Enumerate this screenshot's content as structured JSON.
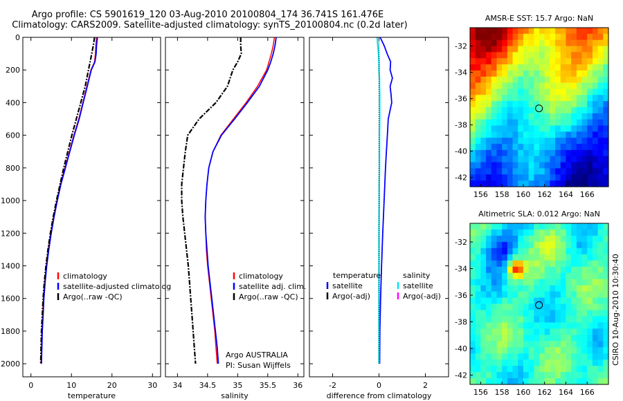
{
  "titles": {
    "line1": "Argo profile: CS 5901619_120 03-Aug-2010 20100804_174 36.741S 161.476E",
    "line2": "Climatology: CARS2009. Satellite-adjusted climatology: synTS_20100804.nc (0.2d later)"
  },
  "colors": {
    "climatology": "#ff0000",
    "satellite": "#0000ff",
    "argo": "#000000",
    "sat_salinity": "#00e5ee",
    "argo_adj_salinity": "#ff00ff"
  },
  "chart_data": [
    {
      "type": "line",
      "panel": "temperature",
      "xlabel": "temperature",
      "ylabel": "",
      "xlim": [
        -2,
        32
      ],
      "ylim": [
        2080,
        0
      ],
      "y_reversed": true,
      "xticks": [
        "0",
        "10",
        "20",
        "30"
      ],
      "yticks": [
        "0",
        "200",
        "400",
        "600",
        "800",
        "1000",
        "1200",
        "1400",
        "1600",
        "1800",
        "2000"
      ],
      "legend": [
        "climatology",
        "satellite-adjusted climatolog",
        "Argo(..raw -QC)"
      ],
      "legend_placement": "lower-middle",
      "depth": [
        0,
        50,
        100,
        150,
        200,
        300,
        400,
        500,
        600,
        700,
        800,
        900,
        1000,
        1100,
        1200,
        1300,
        1400,
        1500,
        1600,
        1700,
        1800,
        1900,
        2000
      ],
      "series": [
        {
          "name": "climatology",
          "values": [
            16.2,
            16.0,
            15.9,
            15.7,
            14.8,
            13.8,
            12.8,
            11.8,
            10.6,
            9.5,
            8.4,
            7.3,
            6.4,
            5.6,
            4.9,
            4.3,
            3.8,
            3.4,
            3.1,
            2.9,
            2.7,
            2.6,
            2.5
          ]
        },
        {
          "name": "satellite-adjusted climatolog",
          "values": [
            16.4,
            16.2,
            16.1,
            15.8,
            14.9,
            13.9,
            12.9,
            11.9,
            10.7,
            9.6,
            8.5,
            7.4,
            6.5,
            5.7,
            5.0,
            4.4,
            3.9,
            3.5,
            3.2,
            3.0,
            2.8,
            2.7,
            2.6
          ]
        },
        {
          "name": "Argo(..raw -QC)",
          "values": [
            15.7,
            15.4,
            15.0,
            14.6,
            14.2,
            13.4,
            12.3,
            11.2,
            10.1,
            9.1,
            8.1,
            7.2,
            6.3,
            5.5,
            4.8,
            4.2,
            3.7,
            3.3,
            3.0,
            2.8,
            2.6,
            2.5,
            2.4
          ]
        }
      ]
    },
    {
      "type": "line",
      "panel": "salinity",
      "xlabel": "salinity",
      "ylabel": "",
      "xlim": [
        33.8,
        36.1
      ],
      "ylim": [
        2080,
        0
      ],
      "y_reversed": true,
      "xticks": [
        "34",
        "34.5",
        "35",
        "35.5",
        "36"
      ],
      "legend": [
        "climatology",
        "satellite adj. clim.",
        "Argo(..raw -QC)"
      ],
      "legend_placement": "lower-right",
      "annotation": [
        "Argo AUSTRALIA",
        "PI: Susan Wijffels"
      ],
      "depth": [
        0,
        50,
        100,
        150,
        200,
        300,
        400,
        500,
        600,
        700,
        800,
        900,
        1000,
        1100,
        1200,
        1300,
        1400,
        1500,
        1600,
        1700,
        1800,
        1900,
        2000
      ],
      "series": [
        {
          "name": "climatology",
          "values": [
            35.61,
            35.59,
            35.56,
            35.52,
            35.48,
            35.33,
            35.14,
            34.93,
            34.72,
            34.59,
            34.52,
            34.49,
            34.47,
            34.46,
            34.47,
            34.48,
            34.5,
            34.53,
            34.56,
            34.59,
            34.62,
            34.64,
            34.66
          ]
        },
        {
          "name": "satellite adj. clim.",
          "values": [
            35.64,
            35.62,
            35.59,
            35.55,
            35.5,
            35.36,
            35.16,
            34.95,
            34.73,
            34.59,
            34.52,
            34.49,
            34.47,
            34.46,
            34.47,
            34.49,
            34.51,
            34.54,
            34.57,
            34.6,
            34.63,
            34.66,
            34.68
          ]
        },
        {
          "name": "Argo(..raw -QC)",
          "values": [
            35.05,
            35.05,
            35.06,
            35.0,
            34.92,
            34.83,
            34.64,
            34.36,
            34.17,
            34.13,
            34.1,
            34.07,
            34.07,
            34.09,
            34.12,
            34.15,
            34.18,
            34.2,
            34.22,
            34.24,
            34.26,
            34.28,
            34.3
          ]
        }
      ]
    },
    {
      "type": "line",
      "panel": "difference",
      "xlabel": "difference from climatology",
      "ylabel": "",
      "xlim": [
        -3.0,
        3.0
      ],
      "ylim": [
        2080,
        0
      ],
      "y_reversed": true,
      "xticks": [
        "-2",
        "0",
        "2"
      ],
      "legend_temperature": {
        "title": "temperature",
        "entries": [
          "satellite",
          "Argo(-adj)"
        ]
      },
      "legend_salinity": {
        "title": "salinity",
        "entries": [
          "satellite",
          "Argo(-adj)"
        ]
      },
      "depth": [
        0,
        50,
        100,
        150,
        200,
        250,
        300,
        350,
        400,
        500,
        600,
        700,
        800,
        900,
        1000,
        1200,
        1400,
        1600,
        1800,
        2000
      ],
      "series": [
        {
          "name": "satellite",
          "values": [
            0.05,
            0.22,
            0.35,
            0.5,
            0.48,
            0.58,
            0.48,
            0.52,
            0.55,
            0.4,
            0.36,
            0.32,
            0.28,
            0.25,
            0.22,
            0.16,
            0.11,
            0.07,
            0.04,
            0.03
          ]
        },
        {
          "name": "satellite",
          "values": [
            -0.08,
            -0.05,
            -0.02,
            0.0,
            0.0,
            0.02,
            0.02,
            0.03,
            0.03,
            0.03,
            0.02,
            0.02,
            0.02,
            0.01,
            0.01,
            0.0,
            0.0,
            0.0,
            0.0,
            0.0
          ]
        },
        {
          "name": "Argo(-adj)",
          "values": [
            0.0,
            0.0,
            0.0,
            0.0,
            0.0,
            0.0,
            0.0,
            0.0,
            0.0,
            0.0,
            0.0,
            0.0,
            0.0,
            0.0,
            0.0,
            0.0,
            0.0,
            0.0,
            0.0,
            0.0
          ]
        }
      ]
    },
    {
      "type": "heatmap",
      "panel": "sst_map",
      "title": "AMSR-E SST: 15.7 Argo: NaN",
      "xticks": [
        "156",
        "158",
        "160",
        "162",
        "164",
        "166"
      ],
      "yticks": [
        "-32",
        "-34",
        "-36",
        "-38",
        "-40",
        "-42"
      ],
      "xlim": [
        155.0,
        168.0
      ],
      "ylim": [
        -42.7,
        -30.6
      ],
      "marker": {
        "lon": 161.476,
        "lat": -36.741
      }
    },
    {
      "type": "heatmap",
      "panel": "sla_map",
      "title": "Altimetric SLA: 0.012 Argo: NaN",
      "xticks": [
        "156",
        "158",
        "160",
        "162",
        "164",
        "166"
      ],
      "yticks": [
        "-32",
        "-34",
        "-36",
        "-38",
        "-40",
        "-42"
      ],
      "xlim": [
        155.0,
        168.0
      ],
      "ylim": [
        -42.7,
        -30.6
      ],
      "marker": {
        "lon": 161.476,
        "lat": -36.741
      }
    }
  ],
  "credit": "CSIRO 10-Aug-2010 10:30:40"
}
